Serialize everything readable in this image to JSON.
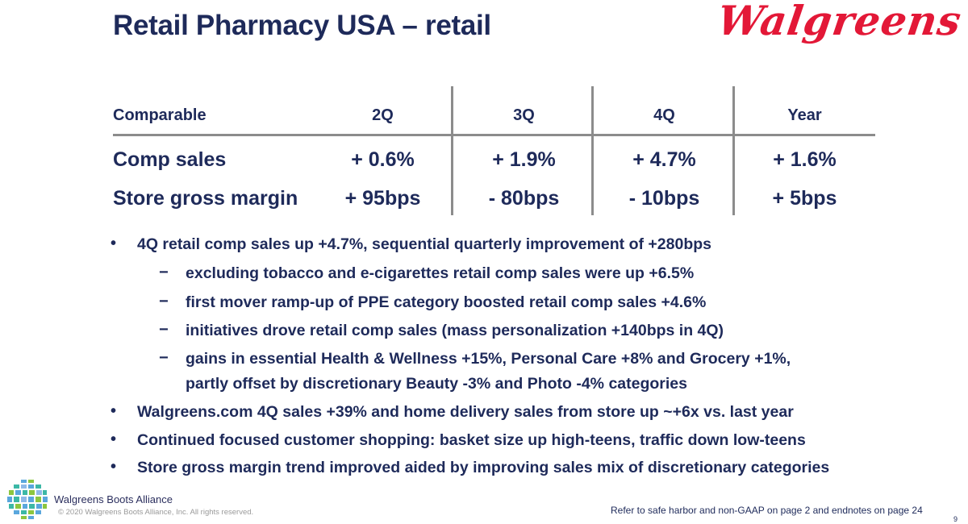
{
  "title": "Retail Pharmacy USA – retail",
  "brand_logo_text": "Walgreens",
  "table": {
    "headers": [
      "Comparable",
      "2Q",
      "3Q",
      "4Q",
      "Year"
    ],
    "rows": [
      {
        "label": "Comp sales",
        "values": [
          "+ 0.6%",
          "+ 1.9%",
          "+ 4.7%",
          "+ 1.6%"
        ]
      },
      {
        "label": "Store gross margin",
        "values": [
          "+ 95bps",
          "- 80bps",
          "- 10bps",
          "+ 5bps"
        ]
      }
    ]
  },
  "bullets": [
    {
      "text": "4Q retail comp sales up +4.7%, sequential quarterly improvement of +280bps",
      "subs": [
        "excluding tobacco and e-cigarettes retail comp sales were up +6.5%",
        "first mover ramp-up of PPE category boosted retail comp sales +4.6%",
        "initiatives drove retail comp sales (mass personalization +140bps in 4Q)",
        "gains in essential Health & Wellness +15%, Personal Care +8% and Grocery +1%,",
        "partly offset by discretionary Beauty -3% and Photo -4% categories"
      ]
    },
    {
      "text": "Walgreens.com 4Q sales +39% and home delivery sales from store up ~+6x vs. last year"
    },
    {
      "text": "Continued focused customer shopping: basket size up high-teens, traffic down low-teens"
    },
    {
      "text": "Store gross margin trend improved aided by improving sales mix of discretionary categories"
    }
  ],
  "bullet_glyph": "•",
  "dash_glyph": "−",
  "footer": {
    "company": "Walgreens Boots Alliance",
    "copyright": "© 2020 Walgreens Boots Alliance, Inc.  All rights reserved.",
    "refer": "Refer to safe harbor and non-GAAP on page 2 and endnotes on page 24",
    "page": "9"
  }
}
